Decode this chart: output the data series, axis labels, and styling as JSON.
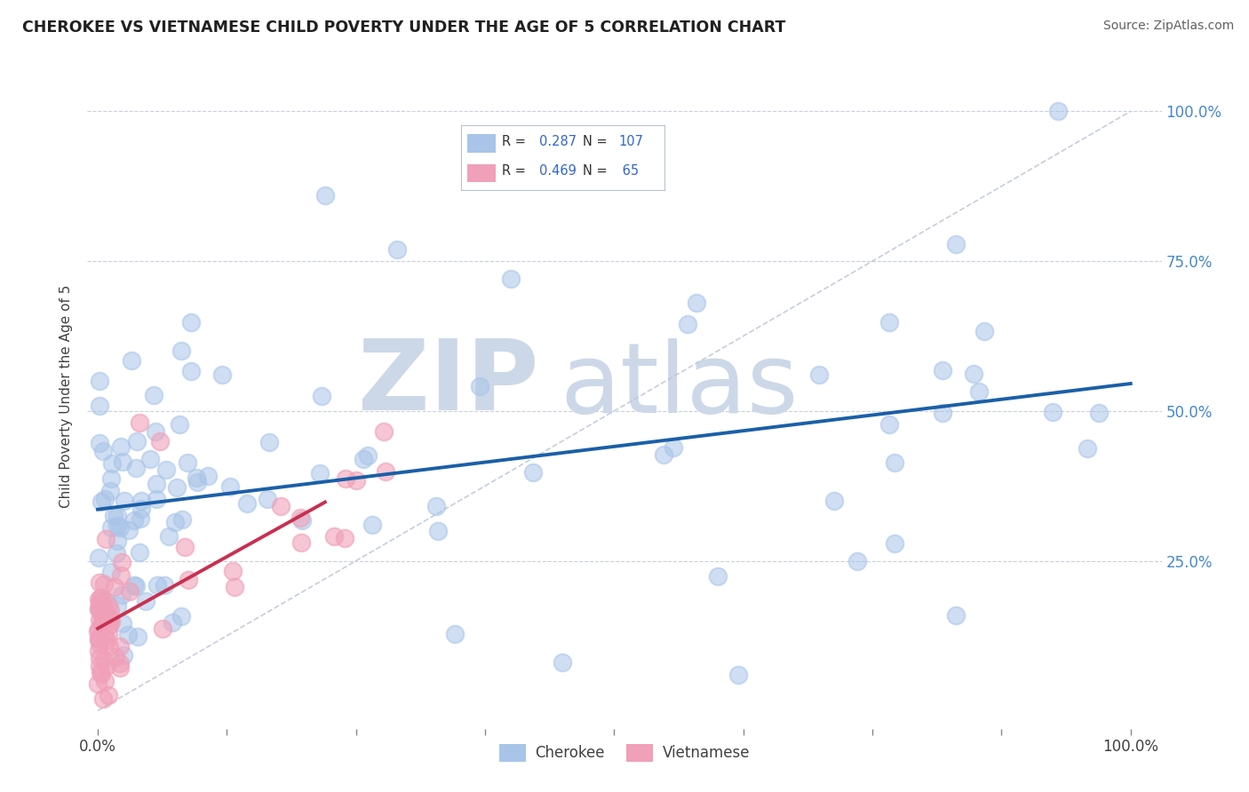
{
  "title": "CHEROKEE VS VIETNAMESE CHILD POVERTY UNDER THE AGE OF 5 CORRELATION CHART",
  "source": "Source: ZipAtlas.com",
  "ylabel": "Child Poverty Under the Age of 5",
  "legend_cherokee_R": "0.287",
  "legend_cherokee_N": "107",
  "legend_vietnamese_R": "0.469",
  "legend_vietnamese_N": "65",
  "cherokee_color": "#a8c4e8",
  "vietnamese_color": "#f0a0b8",
  "trend_cherokee_color": "#1a5fa8",
  "trend_vietnamese_color": "#c83050",
  "ref_line_color": "#c0c8d8",
  "watermark_color": "#ccd8e8",
  "background_color": "#ffffff",
  "grid_color": "#c8d0dc",
  "title_color": "#202020",
  "source_color": "#606060",
  "axis_label_color": "#404040",
  "tick_label_color": "#4488cc",
  "legend_text_color": "#303030",
  "legend_value_color": "#3366cc"
}
